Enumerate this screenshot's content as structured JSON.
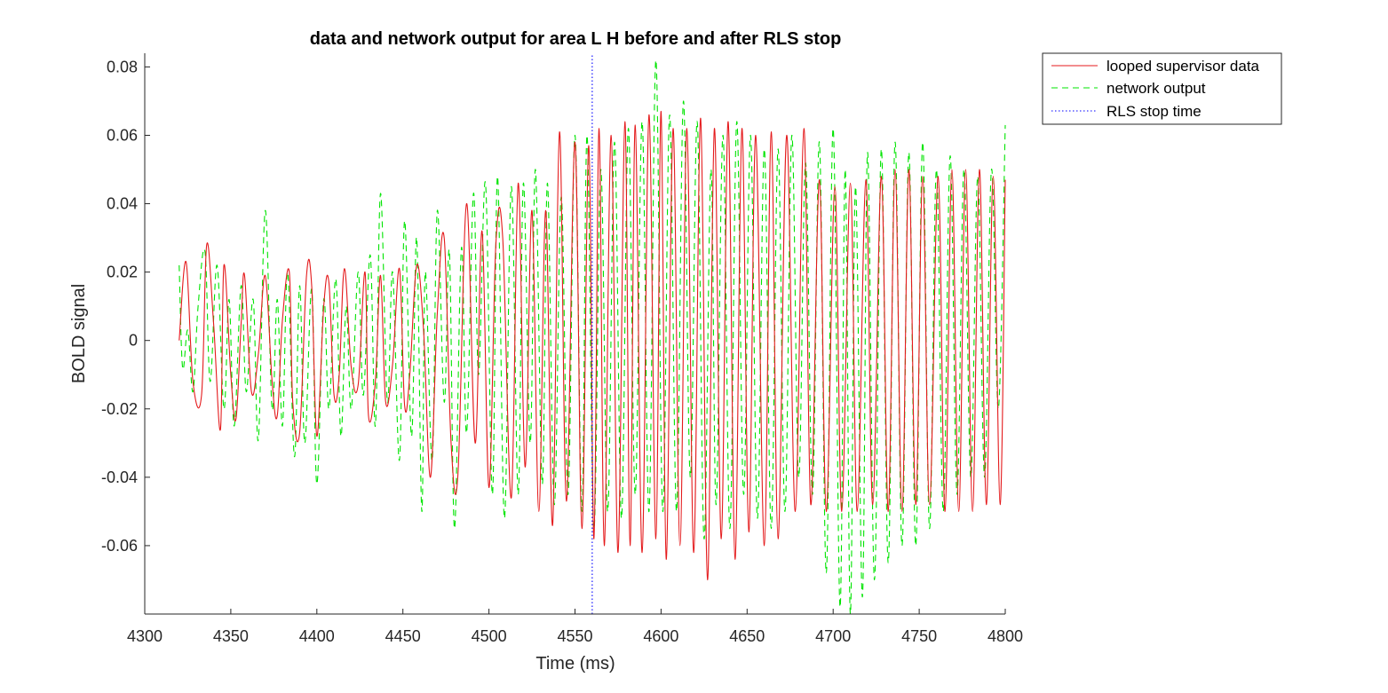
{
  "chart_data": {
    "type": "line",
    "title": "data and network output for area L H before and after RLS stop",
    "xlabel": "Time (ms)",
    "ylabel": "BOLD signal",
    "xlim": [
      4300,
      4800
    ],
    "ylim": [
      -0.08,
      0.084
    ],
    "xticks": [
      4300,
      4350,
      4400,
      4450,
      4500,
      4550,
      4600,
      4650,
      4700,
      4750,
      4800
    ],
    "xtick_labels": [
      "4300",
      "4350",
      "4400",
      "4450",
      "4500",
      "4550",
      "4600",
      "4650",
      "4700",
      "4750",
      "4800"
    ],
    "yticks": [
      0.08,
      0.06,
      0.04,
      0.02,
      0,
      -0.02,
      -0.04,
      -0.06
    ],
    "ytick_labels": [
      "0.08",
      "0.06",
      "0.04",
      "0.02",
      "0",
      "-0.02",
      "-0.04",
      "-0.06"
    ],
    "grid": false,
    "legend_position": "outside-top-right",
    "series": [
      {
        "name": "looped supervisor data",
        "color": "#e41a1c",
        "style": "solid",
        "x": [
          4320,
          4324,
          4328,
          4333,
          4336,
          4340,
          4344,
          4346,
          4350,
          4353,
          4356,
          4358,
          4362,
          4366,
          4370,
          4374,
          4377,
          4380,
          4384,
          4386,
          4390,
          4394,
          4397,
          4400,
          4404,
          4407,
          4410,
          4413,
          4416,
          4420,
          4424,
          4428,
          4430,
          4434,
          4437,
          4440,
          4444,
          4448,
          4451,
          4454,
          4458,
          4462,
          4466,
          4470,
          4474,
          4478,
          4482,
          4487,
          4492,
          4496,
          4500,
          4504,
          4508,
          4513,
          4517,
          4521,
          4525,
          4529,
          4533,
          4537,
          4541,
          4545,
          4550,
          4554,
          4558,
          4561,
          4564,
          4567,
          4571,
          4575,
          4579,
          4582,
          4585,
          4589,
          4593,
          4597,
          4600,
          4603,
          4607,
          4611,
          4615,
          4619,
          4623,
          4627,
          4631,
          4635,
          4639,
          4643,
          4647,
          4651,
          4655,
          4660,
          4664,
          4668,
          4673,
          4678,
          4683,
          4687,
          4692,
          4696,
          4701,
          4705,
          4710,
          4714,
          4719,
          4723,
          4728,
          4732,
          4736,
          4740,
          4744,
          4748,
          4752,
          4756,
          4761,
          4765,
          4769,
          4773,
          4777,
          4781,
          4785,
          4789,
          4793,
          4797,
          4800
        ],
        "y": [
          0.0,
          0.023,
          -0.012,
          -0.016,
          0.028,
          0.005,
          -0.026,
          0.022,
          -0.01,
          -0.023,
          0.005,
          0.019,
          -0.015,
          -0.004,
          0.019,
          -0.012,
          -0.022,
          0.006,
          0.02,
          -0.018,
          -0.027,
          0.019,
          0.016,
          -0.028,
          0.01,
          0.017,
          -0.016,
          -0.01,
          0.021,
          -0.008,
          -0.013,
          0.02,
          -0.022,
          -0.012,
          0.019,
          -0.018,
          -0.007,
          0.021,
          -0.019,
          -0.01,
          0.022,
          0.003,
          -0.04,
          0.008,
          0.03,
          -0.03,
          -0.039,
          0.04,
          -0.03,
          0.032,
          -0.043,
          0.028,
          0.03,
          -0.046,
          0.046,
          -0.037,
          0.038,
          -0.05,
          0.038,
          -0.054,
          0.061,
          -0.047,
          0.058,
          -0.055,
          0.057,
          -0.058,
          0.062,
          -0.06,
          0.06,
          -0.062,
          0.064,
          -0.06,
          0.063,
          -0.062,
          0.066,
          -0.058,
          0.067,
          -0.064,
          0.062,
          -0.06,
          0.062,
          -0.062,
          0.065,
          -0.07,
          0.062,
          -0.058,
          0.064,
          -0.064,
          0.062,
          -0.056,
          0.06,
          -0.06,
          0.061,
          -0.058,
          0.06,
          -0.05,
          0.062,
          -0.048,
          0.047,
          -0.05,
          0.045,
          -0.05,
          0.046,
          -0.05,
          0.047,
          -0.048,
          0.048,
          -0.05,
          0.05,
          -0.05,
          0.05,
          -0.048,
          0.048,
          -0.048,
          0.048,
          -0.05,
          0.05,
          -0.05,
          0.05,
          -0.05,
          0.05,
          -0.048,
          0.048,
          -0.048,
          0.047
        ]
      },
      {
        "name": "network output",
        "color": "#00e400",
        "style": "dashed",
        "x": [
          4320,
          4322,
          4325,
          4328,
          4331,
          4335,
          4338,
          4342,
          4346,
          4349,
          4352,
          4356,
          4359,
          4363,
          4366,
          4370,
          4374,
          4377,
          4380,
          4383,
          4387,
          4390,
          4393,
          4397,
          4400,
          4404,
          4407,
          4411,
          4414,
          4417,
          4420,
          4424,
          4427,
          4431,
          4434,
          4437,
          4441,
          4444,
          4448,
          4451,
          4455,
          4458,
          4461,
          4463,
          4467,
          4470,
          4474,
          4477,
          4480,
          4484,
          4487,
          4491,
          4494,
          4498,
          4502,
          4505,
          4509,
          4513,
          4517,
          4520,
          4524,
          4527,
          4531,
          4534,
          4538,
          4542,
          4546,
          4550,
          4554,
          4557,
          4561,
          4565,
          4569,
          4573,
          4577,
          4581,
          4585,
          4589,
          4593,
          4597,
          4601,
          4605,
          4609,
          4613,
          4617,
          4621,
          4625,
          4629,
          4632,
          4636,
          4640,
          4644,
          4648,
          4652,
          4656,
          4660,
          4664,
          4668,
          4672,
          4676,
          4680,
          4684,
          4688,
          4692,
          4696,
          4700,
          4704,
          4707,
          4710,
          4713,
          4717,
          4720,
          4724,
          4728,
          4732,
          4736,
          4740,
          4744,
          4748,
          4752,
          4756,
          4760,
          4764,
          4768,
          4772,
          4776,
          4780,
          4784,
          4788,
          4792,
          4796,
          4800
        ],
        "y": [
          0.022,
          -0.008,
          0.003,
          -0.015,
          0.01,
          0.026,
          -0.012,
          0.022,
          -0.02,
          0.012,
          -0.025,
          0.016,
          -0.015,
          0.012,
          -0.029,
          0.038,
          -0.02,
          0.012,
          -0.025,
          0.02,
          -0.034,
          0.016,
          -0.03,
          0.015,
          -0.042,
          0.012,
          -0.02,
          0.018,
          -0.028,
          0.01,
          -0.02,
          0.02,
          -0.016,
          0.025,
          -0.025,
          0.043,
          -0.018,
          0.02,
          -0.035,
          0.035,
          -0.028,
          0.03,
          -0.05,
          0.02,
          -0.035,
          0.038,
          -0.018,
          0.026,
          -0.055,
          0.027,
          -0.027,
          0.043,
          -0.01,
          0.046,
          -0.045,
          0.048,
          -0.052,
          0.045,
          -0.045,
          0.046,
          -0.03,
          0.05,
          -0.042,
          0.046,
          -0.048,
          0.042,
          -0.045,
          0.06,
          -0.05,
          0.06,
          -0.055,
          0.05,
          -0.05,
          0.058,
          -0.052,
          0.062,
          -0.045,
          0.064,
          -0.05,
          0.082,
          -0.05,
          0.066,
          -0.05,
          0.07,
          -0.04,
          0.064,
          -0.058,
          0.05,
          -0.048,
          0.06,
          -0.055,
          0.064,
          -0.045,
          0.06,
          -0.052,
          0.056,
          -0.055,
          0.056,
          -0.05,
          0.06,
          -0.04,
          0.052,
          -0.045,
          0.058,
          -0.068,
          0.062,
          -0.078,
          0.05,
          -0.08,
          0.045,
          -0.075,
          0.055,
          -0.07,
          0.056,
          -0.065,
          0.058,
          -0.06,
          0.055,
          -0.06,
          0.058,
          -0.055,
          0.05,
          -0.05,
          0.054,
          -0.045,
          0.05,
          -0.04,
          0.048,
          -0.04,
          0.05,
          -0.02,
          0.063
        ]
      },
      {
        "name": "RLS stop time",
        "color": "#0000ff",
        "style": "dotted",
        "x": [
          4560,
          4560
        ],
        "y": [
          -0.08,
          0.084
        ]
      }
    ]
  }
}
